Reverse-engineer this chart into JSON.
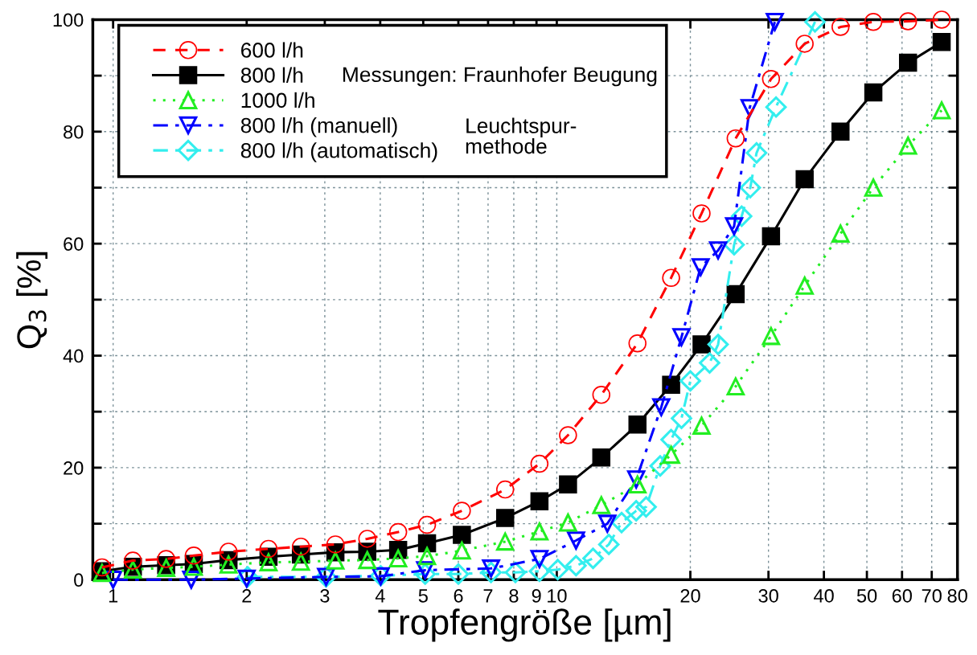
{
  "chart_data": {
    "type": "line",
    "xlabel": "Tropfengröße [µm]",
    "ylabel": "Q$_{3}$ [%]",
    "log": "x",
    "xlim": [
      0.9,
      80
    ],
    "ylim": [
      0,
      100
    ],
    "xticks": [
      1,
      2,
      3,
      4,
      5,
      6,
      7,
      8,
      9,
      10,
      20,
      30,
      40,
      50,
      60,
      70,
      80
    ],
    "yticks": [
      0,
      {
        "value": 10,
        "label": null
      },
      20,
      {
        "value": 30,
        "label": null
      },
      40,
      {
        "value": 50,
        "label": null
      },
      60,
      {
        "value": 70,
        "label": null
      },
      80,
      {
        "value": 90,
        "label": null
      },
      100
    ],
    "grid": true,
    "legend": "top left",
    "annotations": [
      "Messungen: Fraunhofer Beugung",
      "Leuchtspur-\nmethode"
    ],
    "series": [
      {
        "name": "600 l/h",
        "color": "#ff0000",
        "marker": "circle",
        "line_style": "dashed",
        "x": [
          0.944,
          1.108,
          1.317,
          1.52,
          1.82,
          2.24,
          2.65,
          3.17,
          3.74,
          4.39,
          5.1,
          6.11,
          7.65,
          9.14,
          10.6,
          12.6,
          15.2,
          18.1,
          21.2,
          25.3,
          30.4,
          36.2,
          43.6,
          51.7,
          61.9,
          73.7
        ],
        "values": [
          2.2,
          3.4,
          3.7,
          4.3,
          5.0,
          5.5,
          5.9,
          6.3,
          7.3,
          8.5,
          9.8,
          12.3,
          16.1,
          20.7,
          25.8,
          33.0,
          42.2,
          53.9,
          65.4,
          78.8,
          89.4,
          95.7,
          98.7,
          99.6,
          99.7,
          100
        ]
      },
      {
        "name": "800 l/h",
        "color": "#000000",
        "marker": "square",
        "line_style": "solid",
        "x": [
          0.944,
          1.108,
          1.317,
          1.52,
          1.82,
          2.24,
          2.65,
          3.17,
          3.74,
          4.39,
          5.1,
          6.11,
          7.65,
          9.14,
          10.6,
          12.6,
          15.2,
          18.1,
          21.2,
          25.3,
          30.4,
          36.2,
          43.6,
          51.7,
          61.9,
          73.7
        ],
        "values": [
          1.5,
          2.3,
          2.6,
          2.8,
          3.5,
          4.1,
          4.5,
          4.9,
          5.0,
          5.3,
          6.5,
          8.0,
          11.0,
          14.0,
          17.0,
          21.8,
          27.7,
          34.8,
          42.0,
          51.0,
          61.3,
          71.5,
          80.0,
          87.0,
          92.3,
          96.0
        ]
      },
      {
        "name": "1000 l/h",
        "color": "#22ee22",
        "marker": "triangle",
        "line_style": "dotted",
        "x": [
          0.944,
          1.108,
          1.317,
          1.52,
          1.82,
          2.24,
          2.65,
          3.17,
          3.74,
          4.39,
          5.1,
          6.11,
          7.65,
          9.14,
          10.6,
          12.6,
          15.2,
          18.1,
          21.2,
          25.3,
          30.4,
          36.2,
          43.6,
          51.7,
          61.9,
          73.7
        ],
        "values": [
          1.2,
          1.8,
          2.1,
          2.3,
          2.7,
          3.1,
          3.2,
          3.4,
          3.5,
          3.8,
          4.2,
          5.2,
          6.8,
          8.6,
          10.2,
          13.3,
          17.0,
          22.3,
          27.5,
          34.5,
          43.5,
          52.5,
          61.8,
          70.0,
          77.5,
          83.8
        ]
      },
      {
        "name": "800 l/h (manuell)",
        "color": "#0000ff",
        "marker": "triangle_down",
        "line_style": "dashdot",
        "x": [
          1.0,
          1.5,
          2.0,
          3.02,
          4.01,
          5.05,
          7.11,
          9.14,
          11.05,
          13.0,
          15.1,
          17.2,
          19.1,
          21.1,
          23.1,
          25.1,
          27.2,
          31.0
        ],
        "values": [
          0,
          0,
          0.2,
          0.5,
          0.6,
          1.7,
          2.0,
          3.7,
          7.0,
          10.0,
          17.9,
          30.8,
          43.3,
          55.8,
          58.8,
          63.1,
          84.2,
          99.6
        ]
      },
      {
        "name": "800 l/h (automatisch)",
        "color": "#33eeee",
        "marker": "diamond",
        "line_style": "dashdot",
        "x": [
          2.01,
          3.02,
          4.01,
          5.05,
          6.0,
          7.11,
          8.07,
          9.14,
          10.05,
          11.05,
          12.07,
          13.1,
          14.0,
          15.1,
          15.9,
          17.1,
          18.1,
          19.1,
          20.0,
          22.1,
          23.1,
          25.1,
          26.1,
          27.3,
          28.2,
          31.2,
          38.2
        ],
        "values": [
          0.5,
          0.5,
          0.7,
          1.0,
          1.0,
          1.3,
          1.3,
          1.5,
          1.8,
          2.5,
          3.8,
          6.3,
          10.2,
          12.3,
          13.0,
          20.3,
          25.0,
          28.8,
          35.5,
          38.7,
          42.0,
          59.8,
          64.9,
          70.0,
          76.2,
          84.4,
          99.6
        ]
      }
    ]
  }
}
